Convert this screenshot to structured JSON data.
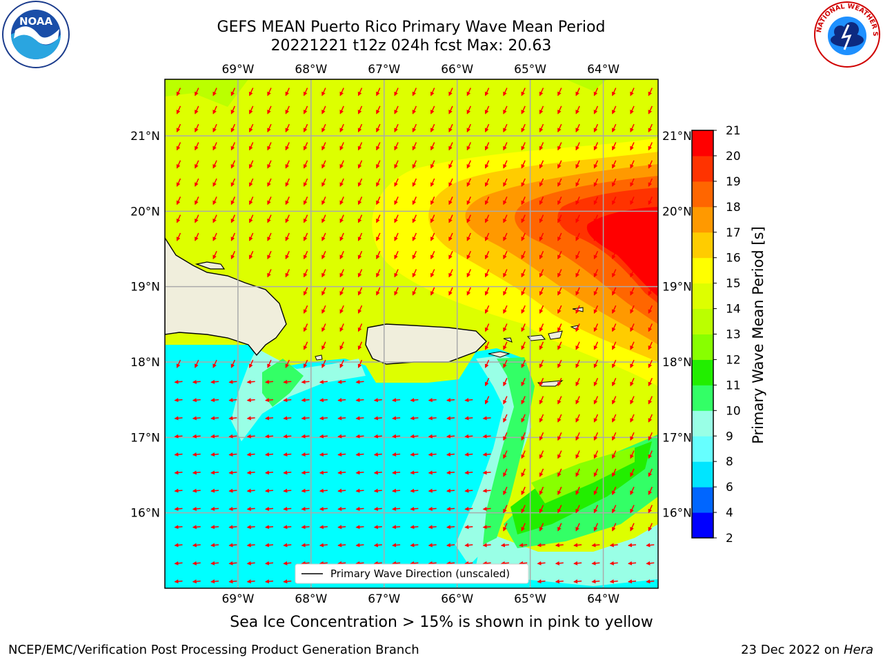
{
  "title": {
    "line1": "GEFS MEAN Puerto Rico Primary Wave Mean Period",
    "line2": "20221221 t12z 024h fcst   Max: 20.63"
  },
  "axes": {
    "lon_labels": [
      "69°W",
      "68°W",
      "67°W",
      "66°W",
      "65°W",
      "64°W"
    ],
    "lon_values": [
      -69,
      -68,
      -67,
      -66,
      -65,
      -64
    ],
    "lat_labels": [
      "21°N",
      "20°N",
      "19°N",
      "18°N",
      "17°N",
      "16°N"
    ],
    "lat_values": [
      21,
      20,
      19,
      18,
      17,
      16
    ],
    "lon_range": [
      -70.0,
      -63.25
    ],
    "lat_range": [
      15.0,
      21.75
    ]
  },
  "colorbar": {
    "label": "Primary Wave Mean Period [s]",
    "ticks": [
      "2",
      "4",
      "6",
      "8",
      "9",
      "10",
      "11",
      "12",
      "13",
      "14",
      "15",
      "16",
      "17",
      "18",
      "19",
      "20",
      "21"
    ],
    "colors": [
      "#0000ff",
      "#0066ff",
      "#00e5ff",
      "#66ffff",
      "#99ffe6",
      "#33ff66",
      "#22ee00",
      "#88ff00",
      "#bbff00",
      "#ddff00",
      "#ffff00",
      "#ffcc00",
      "#ff9900",
      "#ff6600",
      "#ff3300",
      "#ff0000"
    ]
  },
  "legend": {
    "label": "Primary Wave Direction (unscaled)"
  },
  "chart_data": {
    "type": "heatmap",
    "variable": "Primary Wave Mean Period",
    "units": "s",
    "max": 20.63,
    "ylim": [
      2,
      21
    ],
    "regions": [
      {
        "area": "north of 18.3°N, west of 65.5°W",
        "value_range": [
          14,
          15
        ]
      },
      {
        "area": "far northeast 19.2–20.3°N, 63.25–64.2°W",
        "value_range": [
          20,
          21
        ]
      },
      {
        "area": "arc around northeast maximum",
        "value_range": [
          16,
          19
        ]
      },
      {
        "area": "Caribbean south of Puerto Rico",
        "value_range": [
          8,
          9
        ]
      },
      {
        "area": "southeast near 16°N, 65°W",
        "value_range": [
          11,
          13
        ]
      },
      {
        "area": "Atlantic east of 64.5°W, south of 18°N",
        "value_range": [
          14,
          15
        ]
      }
    ],
    "wave_direction": {
      "atlantic": "toward south-southwest",
      "caribbean": "toward west"
    }
  },
  "caption": "Sea Ice Concentration > 15% is shown in pink to yellow",
  "credits": {
    "left": "NCEP/EMC/Verification Post Processing Product Generation Branch",
    "date": "23 Dec 2022 on ",
    "machine": "Hera"
  },
  "logos": {
    "noaa_text": "NOAA",
    "nws_text": "NATIONAL WEATHER SERVICE"
  }
}
